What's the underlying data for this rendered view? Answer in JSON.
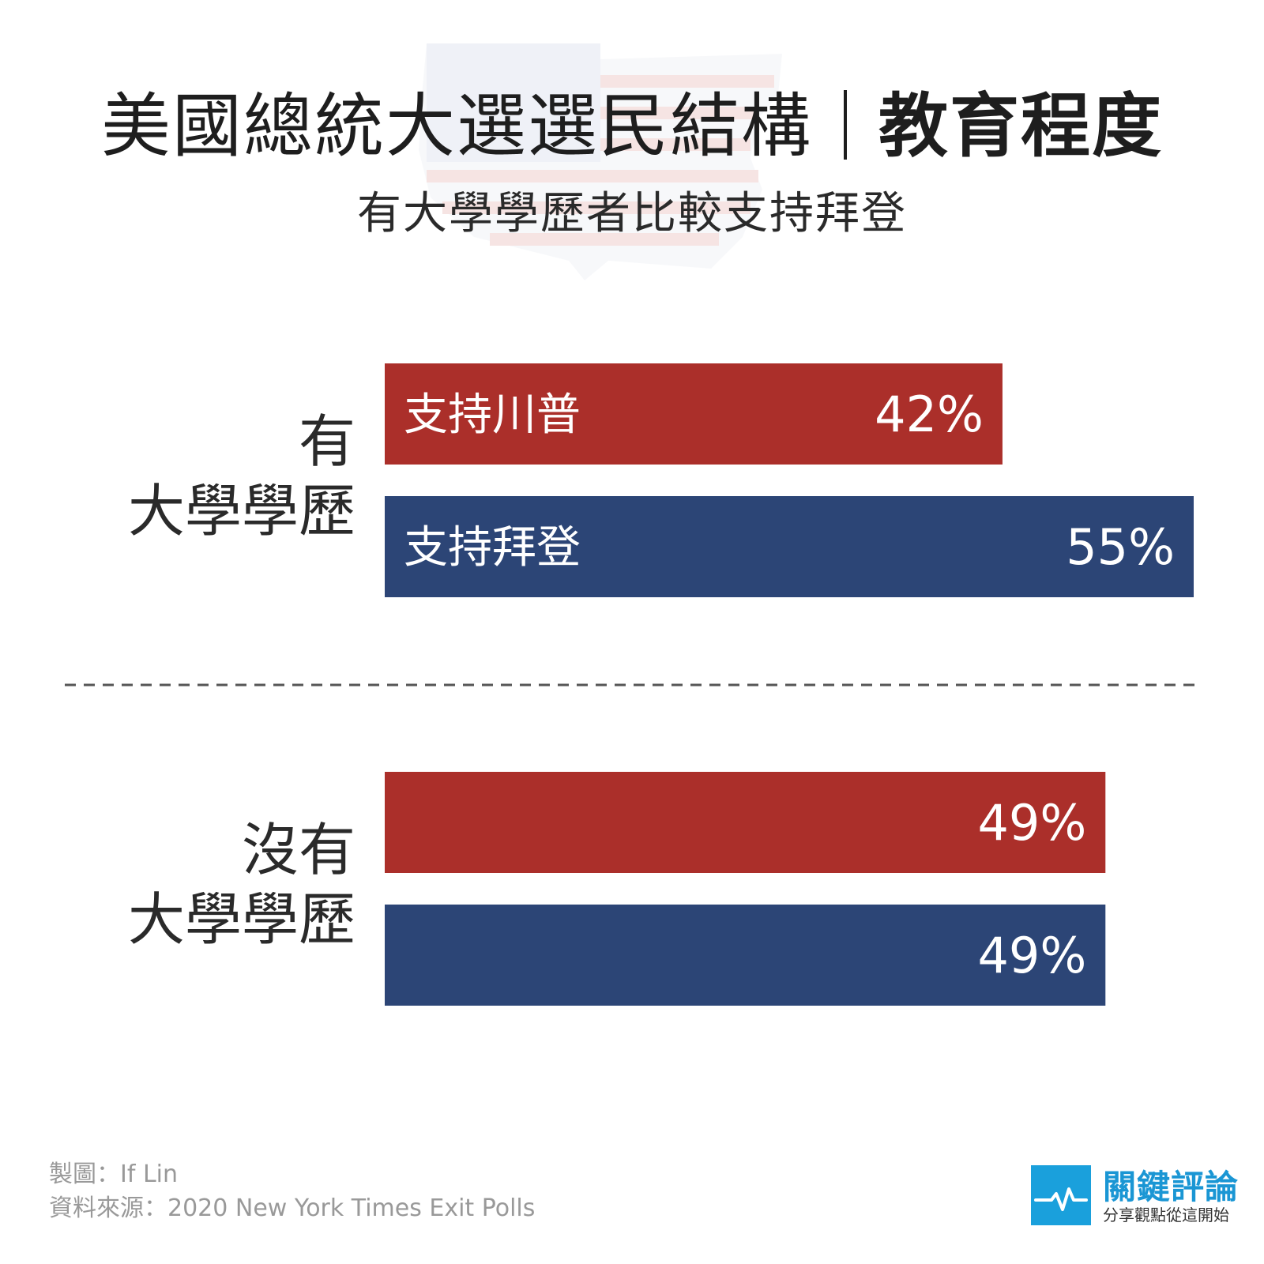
{
  "title": {
    "main": "美國總統大選選民結構",
    "emphasis": "教育程度",
    "subtitle": "有大學學歷者比較支持拜登"
  },
  "colors": {
    "trump": "#ab2f2a",
    "biden": "#2c4576",
    "text": "#2a2a2a",
    "divider": "#555555"
  },
  "chart_data": {
    "type": "bar",
    "orientation": "horizontal",
    "value_suffix": "%",
    "groups": [
      {
        "label_lines": [
          "有",
          "大學學歷"
        ],
        "bars": [
          {
            "series": "trump",
            "label": "支持川普",
            "value": 42,
            "value_label": "42%"
          },
          {
            "series": "biden",
            "label": "支持拜登",
            "value": 55,
            "value_label": "55%"
          }
        ]
      },
      {
        "label_lines": [
          "沒有",
          "大學學歷"
        ],
        "bars": [
          {
            "series": "trump",
            "label": "",
            "value": 49,
            "value_label": "49%"
          },
          {
            "series": "biden",
            "label": "",
            "value": 49,
            "value_label": "49%"
          }
        ]
      }
    ],
    "xlim": [
      0,
      55
    ],
    "grid": false,
    "legend": "none"
  },
  "footer": {
    "credit": "製圖：If Lin",
    "source": "資料來源：2020 New York Times Exit Polls"
  },
  "logo": {
    "name": "關鍵評論",
    "tagline": "分享觀點從這開始",
    "icon": "heartbeat-icon"
  }
}
